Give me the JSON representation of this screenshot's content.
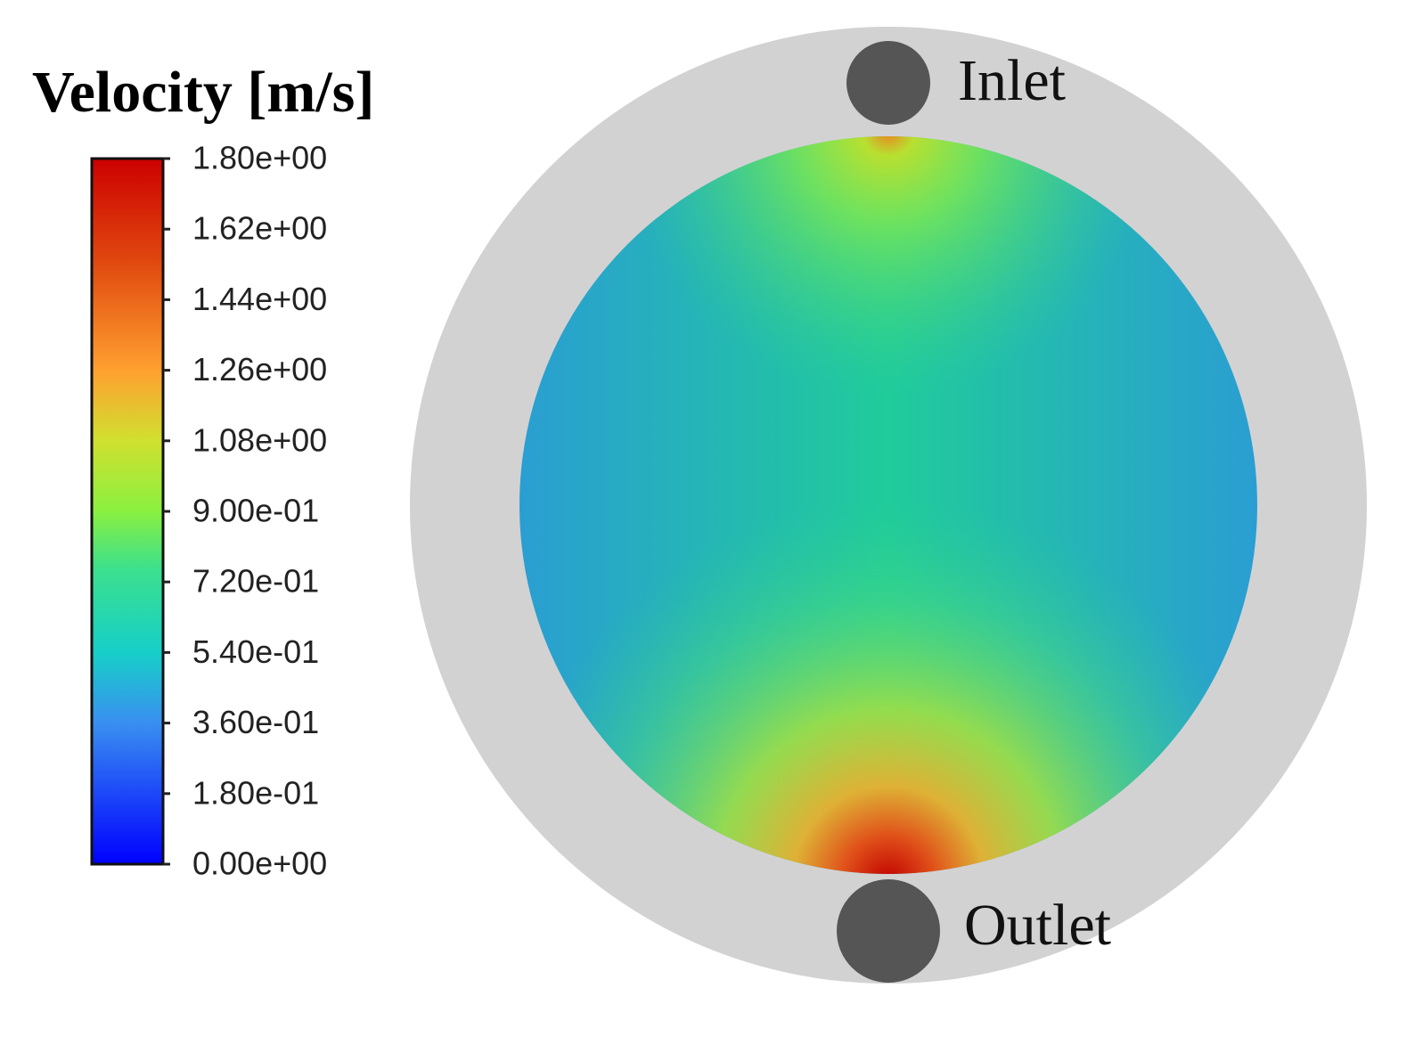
{
  "legend": {
    "title": "Velocity [m/s]",
    "ticks": [
      "1.80e+00",
      "1.62e+00",
      "1.44e+00",
      "1.26e+00",
      "1.08e+00",
      "9.00e-01",
      "7.20e-01",
      "5.40e-01",
      "3.60e-01",
      "1.80e-01",
      "0.00e+00"
    ]
  },
  "labels": {
    "inlet": "Inlet",
    "outlet": "Outlet"
  }
}
